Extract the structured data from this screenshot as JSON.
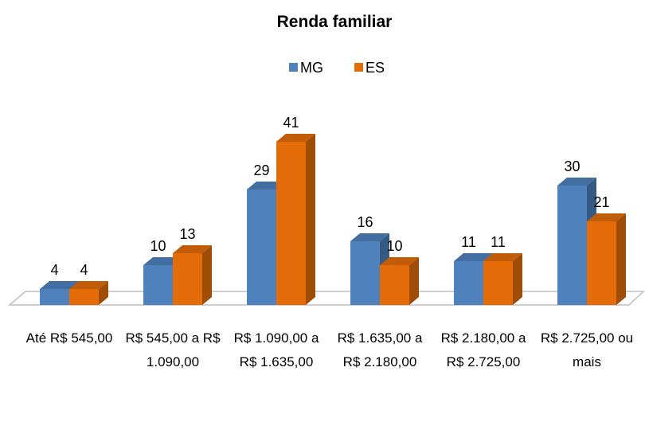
{
  "chart_data": {
    "type": "bar",
    "title": "Renda familiar",
    "categories": [
      "Até R$ 545,00",
      "R$ 545,00 a R$ 1.090,00",
      "R$ 1.090,00 a R$ 1.635,00",
      "R$ 1.635,00 a R$ 2.180,00",
      "R$ 2.180,00 a R$ 2.725,00",
      "R$ 2.725,00 ou mais"
    ],
    "series": [
      {
        "name": "MG",
        "color": "#4f81bd",
        "values": [
          4,
          10,
          29,
          16,
          11,
          30
        ]
      },
      {
        "name": "ES",
        "color": "#e36c09",
        "values": [
          4,
          13,
          41,
          10,
          11,
          21
        ]
      }
    ],
    "legend": "top"
  }
}
